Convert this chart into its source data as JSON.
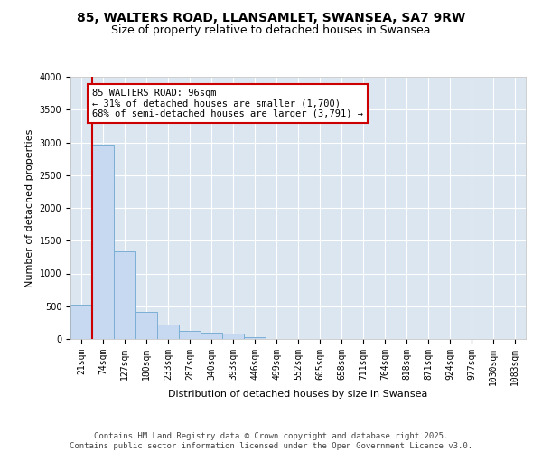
{
  "title_line1": "85, WALTERS ROAD, LLANSAMLET, SWANSEA, SA7 9RW",
  "title_line2": "Size of property relative to detached houses in Swansea",
  "xlabel": "Distribution of detached houses by size in Swansea",
  "ylabel": "Number of detached properties",
  "categories": [
    "21sqm",
    "74sqm",
    "127sqm",
    "180sqm",
    "233sqm",
    "287sqm",
    "340sqm",
    "393sqm",
    "446sqm",
    "499sqm",
    "552sqm",
    "605sqm",
    "658sqm",
    "711sqm",
    "764sqm",
    "818sqm",
    "871sqm",
    "924sqm",
    "977sqm",
    "1030sqm",
    "1083sqm"
  ],
  "values": [
    530,
    2970,
    1340,
    420,
    220,
    130,
    90,
    80,
    30,
    0,
    0,
    0,
    0,
    0,
    0,
    0,
    0,
    0,
    0,
    0,
    0
  ],
  "bar_color": "#c6d9f0",
  "bar_edge_color": "#7bafd4",
  "background_color": "#dce6f1",
  "grid_color": "#ffffff",
  "annotation_text": "85 WALTERS ROAD: 96sqm\n← 31% of detached houses are smaller (1,700)\n68% of semi-detached houses are larger (3,791) →",
  "annotation_box_facecolor": "#ffffff",
  "annotation_box_edgecolor": "#cc0000",
  "vline_color": "#cc0000",
  "vline_x": 0.5,
  "ylim": [
    0,
    4000
  ],
  "yticks": [
    0,
    500,
    1000,
    1500,
    2000,
    2500,
    3000,
    3500,
    4000
  ],
  "footer": "Contains HM Land Registry data © Crown copyright and database right 2025.\nContains public sector information licensed under the Open Government Licence v3.0.",
  "title_fontsize": 10,
  "subtitle_fontsize": 9,
  "axis_label_fontsize": 8,
  "tick_fontsize": 7,
  "annotation_fontsize": 7.5,
  "footer_fontsize": 6.5
}
